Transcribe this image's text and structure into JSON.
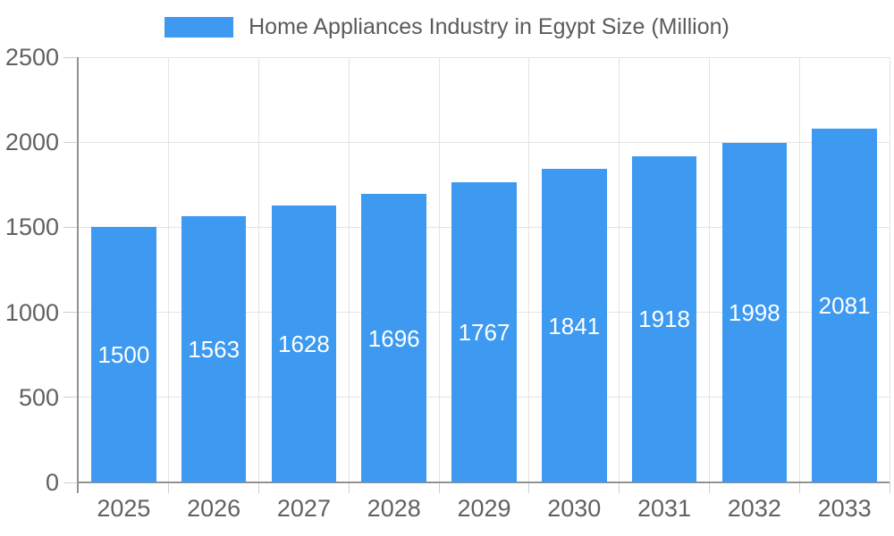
{
  "chart_data": {
    "type": "bar",
    "title": "Home Appliances Industry in Egypt Size (Million)",
    "categories": [
      "2025",
      "2026",
      "2027",
      "2028",
      "2029",
      "2030",
      "2031",
      "2032",
      "2033"
    ],
    "values": [
      1500,
      1563,
      1628,
      1696,
      1767,
      1841,
      1918,
      1998,
      2081
    ],
    "xlabel": "",
    "ylabel": "",
    "ylim": [
      0,
      2500
    ],
    "yticks": [
      0,
      500,
      1000,
      1500,
      2000,
      2500
    ],
    "grid": "on",
    "legend_position": "top",
    "bar_labels_inside": true
  },
  "legend": {
    "label": "Home Appliances Industry in Egypt Size (Million)"
  },
  "colors": {
    "bar": "#3D9AF0",
    "bar_label": "#FFFFFF",
    "grid": "#E4E4E4",
    "axis": "#919191",
    "tick": "#CFCFCF",
    "axis_label": "#616161",
    "legend_text": "#5B5B5B",
    "background": "#FFFFFF"
  }
}
